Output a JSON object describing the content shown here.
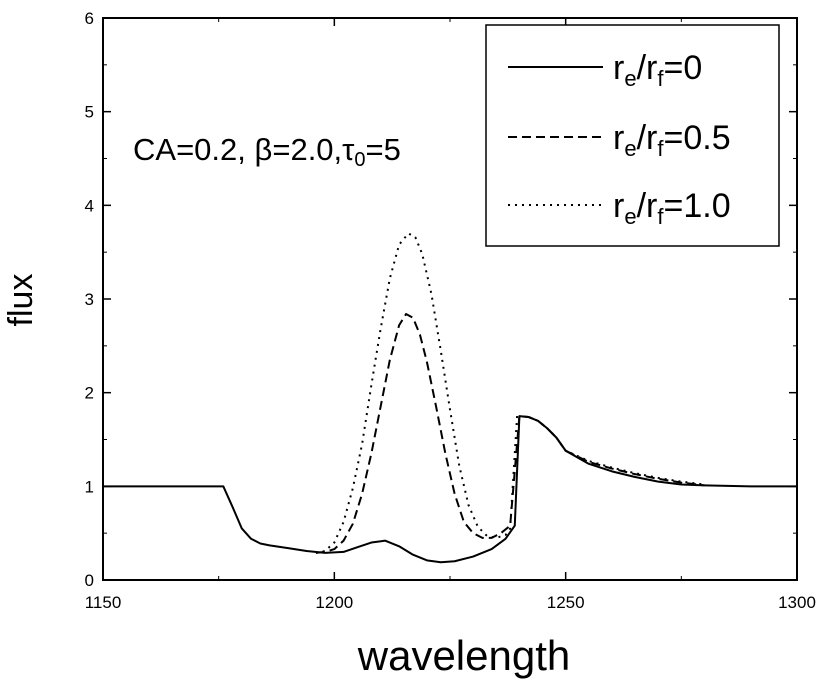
{
  "chart_data": {
    "type": "line",
    "title": "",
    "xlabel": "wavelength",
    "ylabel": "flux",
    "xlim": [
      1150,
      1300
    ],
    "ylim": [
      0,
      6
    ],
    "xticks": [
      1150,
      1200,
      1250,
      1300
    ],
    "yticks": [
      0,
      1,
      2,
      3,
      4,
      5,
      6
    ],
    "annotation": {
      "prefix": "CA=0.2, ",
      "beta": "β",
      "middle": "=2.0,",
      "tau": "τ",
      "tau_sub": "0",
      "suffix": "=5"
    },
    "legend_position": "top-right",
    "series": [
      {
        "name": "r_e/r_f=0",
        "label_r1": "r",
        "label_s1": "e",
        "label_slash": "/",
        "label_r2": "r",
        "label_s2": "f",
        "label_value": "=0",
        "style": "solid",
        "x": [
          1150,
          1176,
          1178,
          1180,
          1182,
          1184,
          1186,
          1190,
          1194,
          1198,
          1202,
          1205,
          1208,
          1211,
          1214,
          1217,
          1220,
          1223,
          1226,
          1230,
          1234,
          1237,
          1239,
          1240,
          1242,
          1244,
          1246,
          1248,
          1250,
          1255,
          1260,
          1265,
          1270,
          1275,
          1280,
          1290,
          1300
        ],
        "y": [
          1.0,
          1.0,
          0.78,
          0.55,
          0.44,
          0.39,
          0.37,
          0.34,
          0.31,
          0.29,
          0.3,
          0.35,
          0.4,
          0.42,
          0.36,
          0.27,
          0.21,
          0.19,
          0.2,
          0.25,
          0.33,
          0.44,
          0.58,
          1.75,
          1.74,
          1.7,
          1.62,
          1.52,
          1.38,
          1.24,
          1.16,
          1.1,
          1.05,
          1.02,
          1.01,
          1.0,
          1.0
        ]
      },
      {
        "name": "r_e/r_f=0.5",
        "label_r1": "r",
        "label_s1": "e",
        "label_slash": "/",
        "label_r2": "r",
        "label_s2": "f",
        "label_value": "=0.5",
        "style": "dashed",
        "x": [
          1196,
          1198,
          1200,
          1202,
          1204,
          1206,
          1208,
          1210,
          1212,
          1214,
          1215.5,
          1217,
          1218.5,
          1220,
          1222,
          1224,
          1226,
          1228,
          1230,
          1232,
          1234,
          1236,
          1238,
          1240,
          1242,
          1244,
          1246,
          1248,
          1250,
          1255,
          1260,
          1265,
          1270,
          1275,
          1280
        ],
        "y": [
          0.29,
          0.3,
          0.33,
          0.42,
          0.6,
          0.92,
          1.35,
          1.85,
          2.35,
          2.72,
          2.84,
          2.8,
          2.62,
          2.33,
          1.85,
          1.35,
          0.92,
          0.62,
          0.5,
          0.45,
          0.45,
          0.5,
          0.58,
          1.75,
          1.74,
          1.7,
          1.62,
          1.52,
          1.38,
          1.26,
          1.19,
          1.13,
          1.08,
          1.04,
          1.01
        ]
      },
      {
        "name": "r_e/r_f=1.0",
        "label_r1": "r",
        "label_s1": "e",
        "label_slash": "/",
        "label_r2": "r",
        "label_s2": "f",
        "label_value": "=1.0",
        "style": "dotted",
        "x": [
          1196,
          1198,
          1200,
          1202,
          1204,
          1206,
          1208,
          1210,
          1212,
          1214,
          1216,
          1217.5,
          1219,
          1221,
          1223,
          1225,
          1227,
          1229,
          1231,
          1233,
          1235,
          1237,
          1238,
          1239.5,
          1242,
          1244,
          1246,
          1248,
          1250,
          1255,
          1260,
          1265,
          1270,
          1275,
          1280
        ],
        "y": [
          0.29,
          0.31,
          0.4,
          0.62,
          0.98,
          1.45,
          2.08,
          2.68,
          3.22,
          3.58,
          3.7,
          3.66,
          3.48,
          3.05,
          2.45,
          1.82,
          1.22,
          0.8,
          0.57,
          0.47,
          0.45,
          0.48,
          0.55,
          1.75,
          1.74,
          1.7,
          1.62,
          1.52,
          1.38,
          1.27,
          1.2,
          1.14,
          1.09,
          1.05,
          1.02
        ]
      }
    ]
  }
}
